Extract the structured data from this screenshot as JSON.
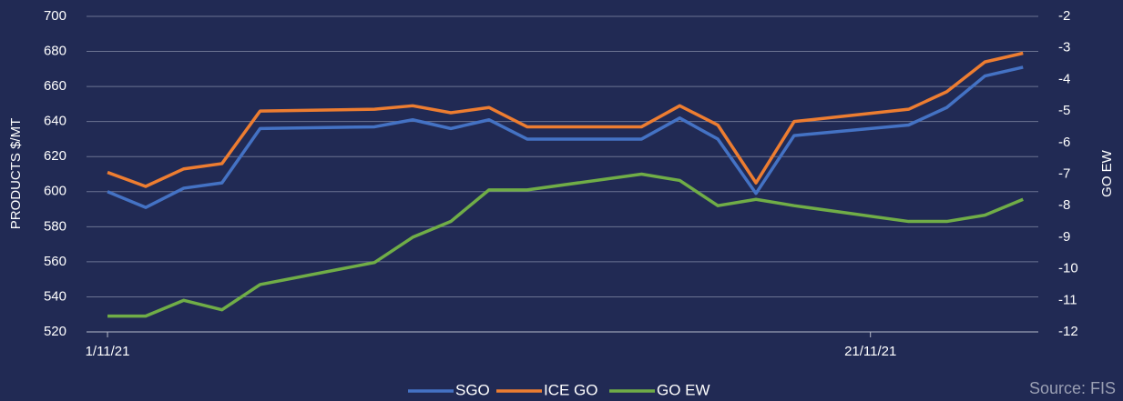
{
  "chart_data": {
    "type": "line",
    "x": [
      "1/11/21",
      "2/11/21",
      "3/11/21",
      "4/11/21",
      "5/11/21",
      "8/11/21",
      "9/11/21",
      "10/11/21",
      "11/11/21",
      "12/11/21",
      "15/11/21",
      "16/11/21",
      "17/11/21",
      "18/11/21",
      "19/11/21",
      "22/11/21",
      "23/11/21",
      "24/11/21",
      "25/11/21"
    ],
    "series": [
      {
        "name": "SGO",
        "color": "#4472c4",
        "values": [
          600,
          591,
          602,
          605,
          636,
          637,
          641,
          636,
          641,
          630,
          630,
          642,
          630,
          599,
          632,
          638,
          648,
          666,
          671
        ]
      },
      {
        "name": "ICE GO",
        "color": "#ed7d31",
        "values": [
          611,
          603,
          613,
          616,
          646,
          647,
          649,
          645,
          648,
          637,
          637,
          649,
          638,
          605,
          640,
          647,
          657,
          674,
          679
        ]
      },
      {
        "name": "GO EW",
        "color": "#70ad47",
        "axis": "y2",
        "values": [
          -11.5,
          -11.5,
          -11.0,
          -11.3,
          -10.5,
          -9.8,
          -9.0,
          -8.5,
          -7.5,
          -7.5,
          -7.0,
          -7.2,
          -8.0,
          -7.8,
          -8.0,
          -8.5,
          -8.5,
          -8.3,
          -7.8
        ]
      }
    ],
    "ylabel": "PRODUCTS $/MT",
    "y2label": "GO EW",
    "ylim": [
      520,
      700
    ],
    "yticks": [
      520,
      540,
      560,
      580,
      600,
      620,
      640,
      660,
      680,
      700
    ],
    "y2lim": [
      -12,
      -2
    ],
    "y2ticks": [
      -12,
      -11,
      -10,
      -9,
      -8,
      -7,
      -6,
      -5,
      -4,
      -3,
      -2
    ],
    "xlim": [
      "1/11/21",
      "25/11/21"
    ],
    "xticks": [
      "1/11/21",
      "21/11/21"
    ],
    "grid": true,
    "legend": "bottom",
    "source": "Source: FIS"
  }
}
